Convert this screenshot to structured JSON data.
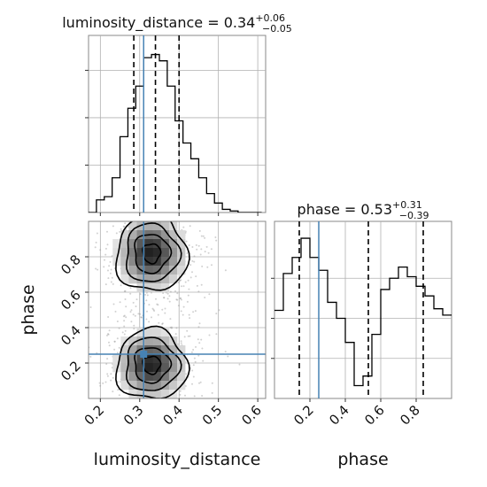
{
  "chart_data": {
    "type": "corner",
    "parameters": [
      "luminosity_distance",
      "phase"
    ],
    "truth": {
      "luminosity_distance": 0.31,
      "phase": 0.25
    },
    "truth_color": "#4682b4",
    "panels": [
      {
        "name": "luminosity_distance marginal",
        "type": "histogram",
        "title_param": "luminosity_distance",
        "title_value": "0.34",
        "title_plus": "+0.06",
        "title_minus": "−0.05",
        "xlim": [
          0.17,
          0.62
        ],
        "quantiles": [
          0.285,
          0.34,
          0.4
        ],
        "bin_edges": [
          0.17,
          0.19,
          0.21,
          0.23,
          0.25,
          0.27,
          0.29,
          0.31,
          0.33,
          0.35,
          0.37,
          0.39,
          0.41,
          0.43,
          0.45,
          0.47,
          0.49,
          0.51,
          0.53,
          0.55,
          0.57,
          0.59,
          0.61
        ],
        "counts": [
          0.0,
          0.08,
          0.1,
          0.22,
          0.48,
          0.66,
          0.8,
          0.98,
          1.0,
          0.96,
          0.8,
          0.58,
          0.44,
          0.34,
          0.22,
          0.12,
          0.06,
          0.02,
          0.01,
          0.0,
          0.0,
          0.0
        ]
      },
      {
        "name": "phase marginal",
        "type": "histogram",
        "title_param": "phase",
        "title_value": "0.53",
        "title_plus": "+0.31",
        "title_minus": "−0.39",
        "xlim": [
          0.0,
          1.0
        ],
        "quantiles": [
          0.14,
          0.53,
          0.84
        ],
        "bin_edges": [
          0.0,
          0.05,
          0.1,
          0.15,
          0.2,
          0.25,
          0.3,
          0.35,
          0.4,
          0.45,
          0.5,
          0.55,
          0.6,
          0.65,
          0.7,
          0.75,
          0.8,
          0.85,
          0.9,
          0.95,
          1.0
        ],
        "counts": [
          0.55,
          0.78,
          0.88,
          1.0,
          0.88,
          0.8,
          0.6,
          0.5,
          0.35,
          0.08,
          0.14,
          0.4,
          0.68,
          0.75,
          0.82,
          0.76,
          0.7,
          0.64,
          0.56,
          0.52
        ]
      },
      {
        "name": "luminosity_distance vs phase",
        "type": "2d-density",
        "xlabel": "luminosity_distance",
        "ylabel": "phase",
        "xlim": [
          0.17,
          0.62
        ],
        "ylim": [
          0.0,
          1.0
        ],
        "xticks": [
          0.2,
          0.3,
          0.4,
          0.5,
          0.6
        ],
        "yticks": [
          0.2,
          0.4,
          0.6,
          0.8
        ],
        "modes": [
          {
            "x": 0.33,
            "y": 0.82,
            "sx": 0.045,
            "sy": 0.11
          },
          {
            "x": 0.33,
            "y": 0.19,
            "sx": 0.045,
            "sy": 0.1
          }
        ]
      }
    ],
    "hist_yticks_top": [
      0.3,
      0.6,
      0.9
    ],
    "hist_yticks_phase": [
      0.25,
      0.5,
      0.75
    ]
  }
}
